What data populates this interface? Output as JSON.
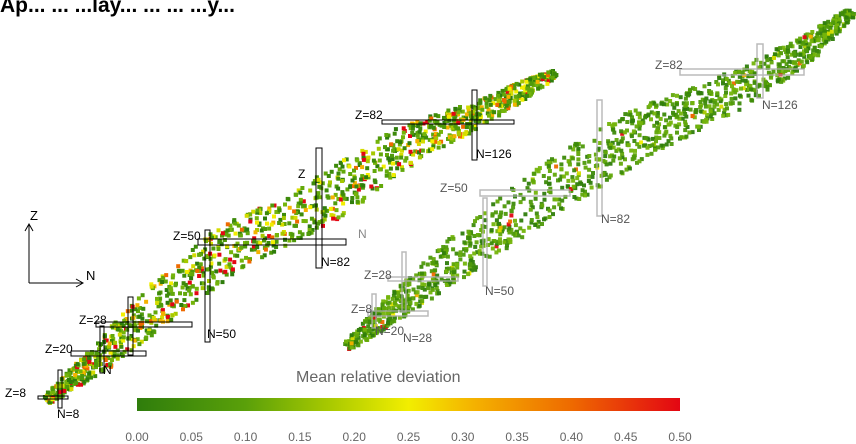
{
  "title": "Ap... ... ...lay... ... ... ...y...",
  "axes": {
    "z_label": "Z",
    "n_label": "N"
  },
  "left_chart": {
    "z_lines": [
      "Z=8",
      "Z=20",
      "Z=28",
      "Z=50",
      "Z=82"
    ],
    "n_lines": [
      "N=8",
      "N",
      "N=50",
      "N=82",
      "N=126"
    ],
    "extra_labels": [
      "Z",
      "N"
    ]
  },
  "right_chart": {
    "z_lines": [
      "Z=82",
      "Z=50",
      "Z=28",
      "Z=8"
    ],
    "n_lines": [
      "N=126",
      "N=82",
      "N=50",
      "N=20",
      "N=28"
    ]
  },
  "colorbar": {
    "title": "Mean relative deviation",
    "ticks": [
      "0.00",
      "0.05",
      "0.10",
      "0.15",
      "0.20",
      "0.25",
      "0.30",
      "0.35",
      "0.40",
      "0.45",
      "0.50"
    ],
    "colors": [
      "#2f7d0c",
      "#5aa00a",
      "#a6c800",
      "#f2ee00",
      "#f4b200",
      "#ee6a00",
      "#e30613"
    ]
  }
}
